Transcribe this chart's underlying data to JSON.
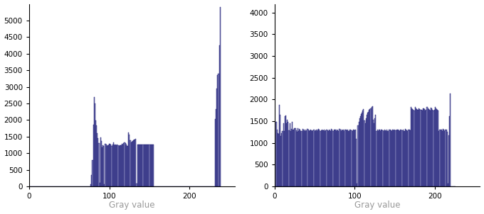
{
  "bar_color": "#8888bb",
  "bar_edge_color": "#000066",
  "xlabel": "Gray value",
  "xlabel_color": "#999999",
  "hist1_ylim": [
    0,
    5500
  ],
  "hist2_ylim": [
    0,
    4200
  ],
  "hist1_yticks": [
    0,
    500,
    1000,
    1500,
    2000,
    2500,
    3000,
    3500,
    4000,
    4500,
    5000
  ],
  "hist2_yticks": [
    0,
    500,
    1000,
    1500,
    2000,
    2500,
    3000,
    3500,
    4000
  ],
  "xticks": [
    0,
    100,
    200
  ],
  "figsize": [
    6.8,
    3.02
  ],
  "dpi": 100,
  "hist1_bins": [
    0,
    0,
    0,
    0,
    0,
    0,
    0,
    0,
    0,
    0,
    0,
    0,
    0,
    0,
    0,
    0,
    0,
    0,
    0,
    0,
    0,
    0,
    0,
    0,
    0,
    0,
    0,
    0,
    0,
    0,
    0,
    0,
    0,
    0,
    0,
    0,
    0,
    0,
    0,
    0,
    0,
    0,
    0,
    0,
    0,
    0,
    0,
    0,
    0,
    0,
    0,
    0,
    0,
    0,
    0,
    0,
    0,
    0,
    0,
    0,
    0,
    0,
    0,
    0,
    0,
    0,
    0,
    0,
    0,
    0,
    0,
    0,
    0,
    0,
    0,
    0,
    0,
    75,
    350,
    800,
    1850,
    2700,
    2500,
    1980,
    1830,
    1600,
    1450,
    1300,
    100,
    1480,
    1360,
    1180,
    1230,
    1210,
    60,
    1280,
    1270,
    1210,
    1250,
    1230,
    1280,
    1290,
    1270,
    1210,
    1260,
    1320,
    1260,
    1240,
    1270,
    1250,
    1270,
    1250,
    1210,
    1230,
    1250,
    1240,
    1280,
    1260,
    1300,
    1320,
    1300,
    1270,
    1210,
    1220,
    1620,
    1570,
    1390,
    1320,
    1340,
    1360,
    1380,
    1410,
    1420,
    1440,
    80,
    1270,
    1270,
    1270,
    1260,
    1260,
    1270,
    1270,
    1260,
    1270,
    1260,
    1270,
    1260,
    1270,
    1260,
    1270,
    1260,
    1270,
    1260,
    1260,
    1270,
    1260,
    0,
    0,
    0,
    0,
    0,
    0,
    0,
    0,
    0,
    0,
    0,
    0,
    0,
    0,
    0,
    0,
    0,
    0,
    0,
    0,
    0,
    0,
    0,
    0,
    0,
    0,
    0,
    0,
    0,
    0,
    0,
    0,
    0,
    0,
    0,
    0,
    0,
    0,
    0,
    0,
    0,
    0,
    0,
    0,
    0,
    0,
    0,
    0,
    0,
    0,
    0,
    0,
    0,
    0,
    0,
    0,
    0,
    0,
    0,
    0,
    0,
    0,
    0,
    0,
    0,
    0,
    0,
    0,
    0,
    0,
    0,
    0,
    0,
    0,
    0,
    0,
    2020,
    2320,
    2950,
    3350,
    3400,
    4250,
    5400
  ],
  "hist2_bins": [
    1920,
    80,
    1490,
    1310,
    1230,
    1200,
    1870,
    1640,
    1160,
    1220,
    1280,
    1460,
    1280,
    1620,
    1630,
    1460,
    1530,
    1490,
    1290,
    1460,
    1270,
    1320,
    1490,
    1300,
    1310,
    1330,
    1330,
    1290,
    1250,
    1330,
    1270,
    1320,
    1300,
    1280,
    1270,
    1320,
    1300,
    1280,
    1300,
    1280,
    1290,
    1320,
    1300,
    1280,
    1290,
    1310,
    1290,
    1280,
    1290,
    1300,
    1280,
    1290,
    1300,
    1280,
    1300,
    1320,
    1300,
    1280,
    1290,
    1300,
    1290,
    1290,
    1300,
    1280,
    1290,
    1300,
    1290,
    1280,
    1300,
    1290,
    1270,
    1320,
    1300,
    1280,
    1300,
    1310,
    1300,
    1280,
    1300,
    1290,
    1280,
    1320,
    1300,
    1280,
    1300,
    1290,
    1300,
    1280,
    1300,
    1300,
    1290,
    1300,
    1280,
    1280,
    1300,
    1300,
    1290,
    1280,
    1310,
    1300,
    1290,
    1300,
    1090,
    70,
    1400,
    1480,
    1570,
    1620,
    1660,
    1700,
    1750,
    1780,
    1520,
    1450,
    1560,
    1640,
    1700,
    1720,
    1760,
    1780,
    1800,
    1820,
    1840,
    1530,
    1460,
    1560,
    1640,
    1270,
    1300,
    1280,
    1300,
    1300,
    1280,
    1300,
    1300,
    1290,
    1280,
    1300,
    1290,
    1280,
    1300,
    1280,
    1280,
    1300,
    1300,
    1290,
    1280,
    1310,
    1300,
    1290,
    1300,
    1290,
    1300,
    1310,
    1300,
    1290,
    1280,
    1310,
    1300,
    1290,
    1300,
    1280,
    1280,
    1320,
    1300,
    1290,
    1280,
    1300,
    1300,
    1290,
    1820,
    1800,
    1780,
    1760,
    1750,
    1820,
    1800,
    1780,
    1770,
    1760,
    1800,
    1780,
    1760,
    1770,
    1750,
    1800,
    1790,
    1780,
    1750,
    1760,
    1820,
    1800,
    1780,
    1770,
    1750,
    1810,
    1790,
    1770,
    1750,
    1760,
    1820,
    1800,
    1780,
    1760,
    1740,
    1270,
    1300,
    1300,
    1300,
    1280,
    1320,
    1300,
    1280,
    1310,
    1300,
    1260,
    70,
    1170,
    1610,
    2130,
    0,
    0,
    0,
    0,
    0,
    0
  ]
}
